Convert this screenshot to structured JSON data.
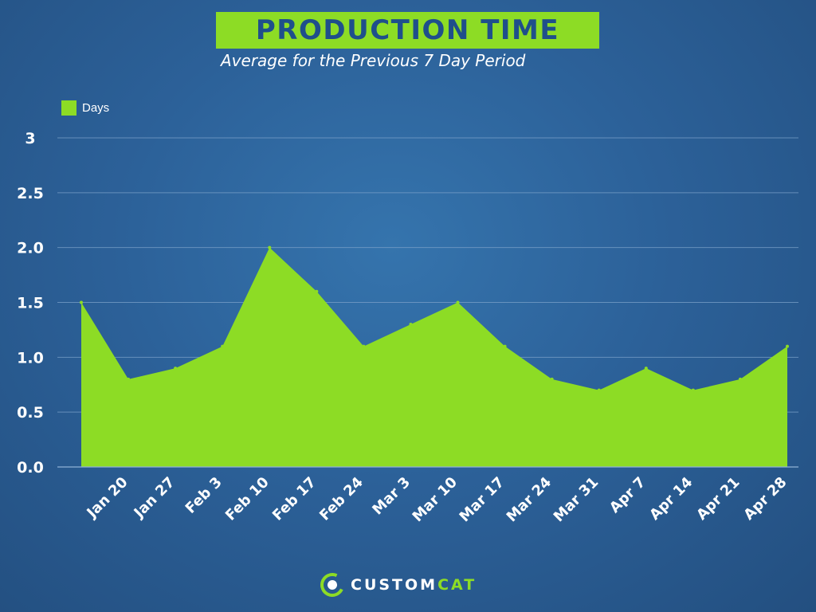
{
  "header": {
    "title": "PRODUCTION TIME",
    "subtitle": "Average for the Previous 7 Day Period"
  },
  "brand": {
    "name_main": "CUSTOM",
    "name_accent": "CAT",
    "logo_icon": "cat-logo-icon"
  },
  "colors": {
    "fill": "#8ddc25",
    "grid": "#7aa0c8",
    "axis": "#8fb2d6",
    "title_text": "#1f4f8b"
  },
  "chart_data": {
    "type": "area",
    "title": "PRODUCTION TIME",
    "subtitle": "Average for the Previous 7 Day Period",
    "legend": {
      "position": "top-left",
      "entries": [
        "Days"
      ]
    },
    "y_tick_labels": [
      "0.0",
      "0.5",
      "1.0",
      "1.5",
      "2.0",
      "2.5",
      "3"
    ],
    "ylim": [
      0,
      3
    ],
    "grid": true,
    "x_tick_labels": [
      "Jan 20",
      "Jan 27",
      "Feb 3",
      "Feb 10",
      "Feb 17",
      "Feb 24",
      "Mar 3",
      "Mar 10",
      "Mar 17",
      "Mar 24",
      "Mar 31",
      "Apr 7",
      "Apr 14",
      "Apr 21",
      "Apr 28"
    ],
    "series": [
      {
        "name": "Days",
        "points": [
          {
            "x": "Jan 13",
            "y": 1.5
          },
          {
            "x": "Jan 20",
            "y": 0.8
          },
          {
            "x": "Jan 27",
            "y": 0.9
          },
          {
            "x": "Feb 3",
            "y": 1.1
          },
          {
            "x": "Feb 10",
            "y": 2.0
          },
          {
            "x": "Feb 17",
            "y": 1.6
          },
          {
            "x": "Feb 24",
            "y": 1.1
          },
          {
            "x": "Mar 3",
            "y": 1.3
          },
          {
            "x": "Mar 10",
            "y": 1.5
          },
          {
            "x": "Mar 17",
            "y": 1.1
          },
          {
            "x": "Mar 24",
            "y": 0.8
          },
          {
            "x": "Mar 31",
            "y": 0.7
          },
          {
            "x": "Apr 7",
            "y": 0.9
          },
          {
            "x": "Apr 14",
            "y": 0.7
          },
          {
            "x": "Apr 21",
            "y": 0.8
          },
          {
            "x": "Apr 28",
            "y": 1.1
          }
        ]
      }
    ]
  }
}
